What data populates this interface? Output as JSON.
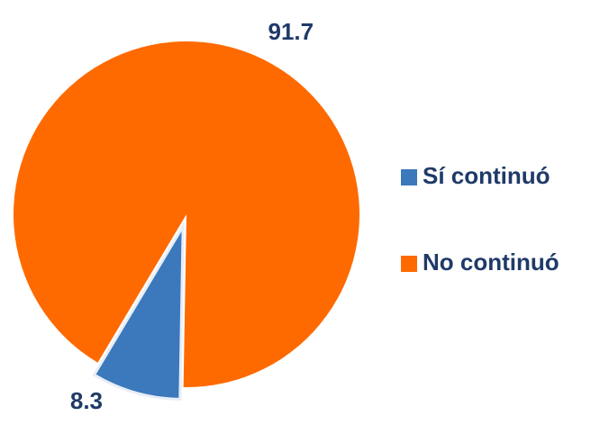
{
  "chart_data": {
    "type": "pie",
    "categories": [
      "Sí continuó",
      "No continuó"
    ],
    "values": [
      8.3,
      91.7
    ],
    "colors": [
      "#3b78bc",
      "#ff6a00"
    ],
    "legend": "right"
  }
}
